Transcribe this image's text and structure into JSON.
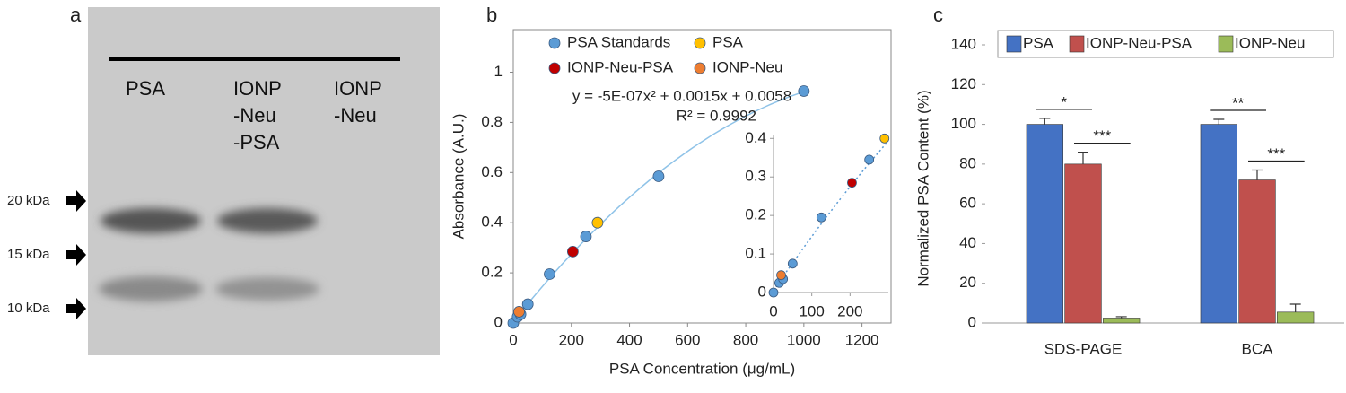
{
  "gel": {
    "label": "a",
    "lanes": [
      [
        "PSA"
      ],
      [
        "IONP",
        "-Neu",
        "-PSA"
      ],
      [
        "IONP",
        "-Neu"
      ]
    ],
    "markers": [
      "20 kDa",
      "15 kDa",
      "10 kDa"
    ]
  },
  "chart_data": [
    {
      "type": "scatter",
      "label": "b",
      "x_label": "PSA Concentration (μg/mL)",
      "y_label": "Absorbance (A.U.)",
      "series": [
        {
          "name": "PSA Standards",
          "color": "#5b9bd5",
          "x": [
            0,
            15,
            25,
            50,
            125,
            250,
            500,
            1000
          ],
          "values": [
            0,
            0.025,
            0.035,
            0.075,
            0.195,
            0.345,
            0.585,
            0.925
          ]
        },
        {
          "name": "PSA",
          "color": "#ffc000",
          "x": [
            290
          ],
          "values": [
            0.4
          ]
        },
        {
          "name": "IONP-Neu-PSA",
          "color": "#c00000",
          "x": [
            205
          ],
          "values": [
            0.285
          ]
        },
        {
          "name": "IONP-Neu",
          "color": "#ed7d31",
          "x": [
            20
          ],
          "values": [
            0.045
          ]
        }
      ],
      "xlim": [
        0,
        1300
      ],
      "xticks": [
        0,
        200,
        400,
        600,
        800,
        1000,
        1200
      ],
      "ylim": [
        0,
        1.17
      ],
      "yticks": [
        0,
        0.2,
        0.4,
        0.6,
        0.8,
        1
      ],
      "annotations": [
        "y = -5E-07x² + 0.0015x + 0.0058",
        "R² = 0.9992"
      ],
      "trendline": true,
      "inset": {
        "xlim": [
          0,
          300
        ],
        "xticks": [
          0,
          100,
          200
        ],
        "ylim": [
          0,
          0.41
        ],
        "yticks": [
          0,
          0.1,
          0.2,
          0.3,
          0.4
        ]
      }
    },
    {
      "type": "bar",
      "label": "c",
      "y_label": "Normalized PSA Content (%)",
      "categories": [
        "SDS-PAGE",
        "BCA"
      ],
      "series": [
        {
          "name": "PSA",
          "color": "#4472c4",
          "values": [
            100,
            100
          ],
          "errors": [
            3,
            2.5
          ]
        },
        {
          "name": "IONP-Neu-PSA",
          "color": "#c0504d",
          "values": [
            80,
            72
          ],
          "errors": [
            6,
            5
          ]
        },
        {
          "name": "IONP-Neu",
          "color": "#9bbb59",
          "values": [
            2.5,
            5.5
          ],
          "errors": [
            0.7,
            4
          ]
        }
      ],
      "ylim": [
        0,
        140
      ],
      "yticks": [
        0,
        20,
        40,
        60,
        80,
        100,
        120,
        140
      ],
      "significance": [
        [
          "*",
          "***"
        ],
        [
          "**",
          "***"
        ]
      ]
    }
  ]
}
